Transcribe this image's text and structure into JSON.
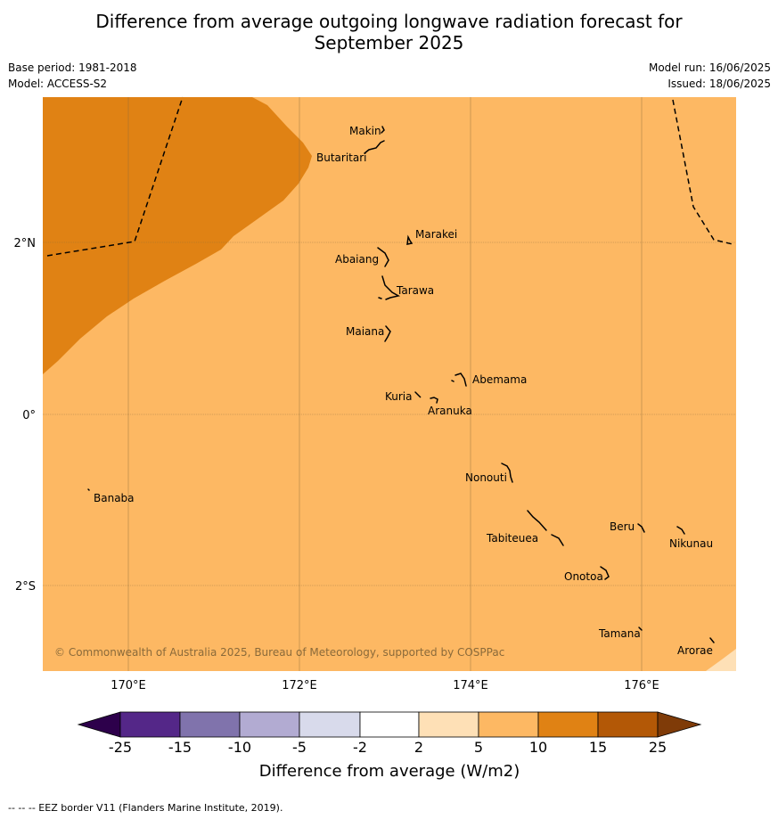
{
  "title_line1": "Difference from average outgoing longwave radiation forecast for",
  "title_line2": "September 2025",
  "base_period": "Base period: 1981-2018",
  "model": "Model: ACCESS-S2",
  "model_run": "Model run: 16/06/2025",
  "issued": "Issued: 18/06/2025",
  "copyright": "© Commonwealth of Australia 2025, Bureau of Meteorology, supported by COSPPac",
  "footnote": "--  --  -- EEZ border V11 (Flanders Marine Institute, 2019).",
  "lat_labels": [
    "2°N",
    "0°",
    "2°S"
  ],
  "lon_labels": [
    "170°E",
    "172°E",
    "174°E",
    "176°E"
  ],
  "islands": [
    "Makin",
    "Butaritari",
    "Marakei",
    "Abaiang",
    "Tarawa",
    "Maiana",
    "Abemama",
    "Kuria",
    "Aranuka",
    "Nonouti",
    "Banaba",
    "Beru",
    "Nikunau",
    "Tabiteuea",
    "Onotoa",
    "Tamana",
    "Arorae"
  ],
  "colorbar": {
    "title": "Difference from average (W/m2)",
    "ticks": [
      "-25",
      "-15",
      "-10",
      "-5",
      "-2",
      "2",
      "5",
      "10",
      "15",
      "25"
    ],
    "colors": {
      "below_min": "#2d004b",
      "bins": [
        "#542788",
        "#8073ac",
        "#b2abd2",
        "#d8daeb",
        "#ffffff",
        "#fee0b6",
        "#fdb863",
        "#e08214",
        "#b35806"
      ],
      "above_max": "#7f3b08"
    }
  },
  "field_colors": {
    "5_to_10": "#fdb863",
    "10_to_15": "#e08214",
    "2_to_5": "#fee0b6"
  }
}
